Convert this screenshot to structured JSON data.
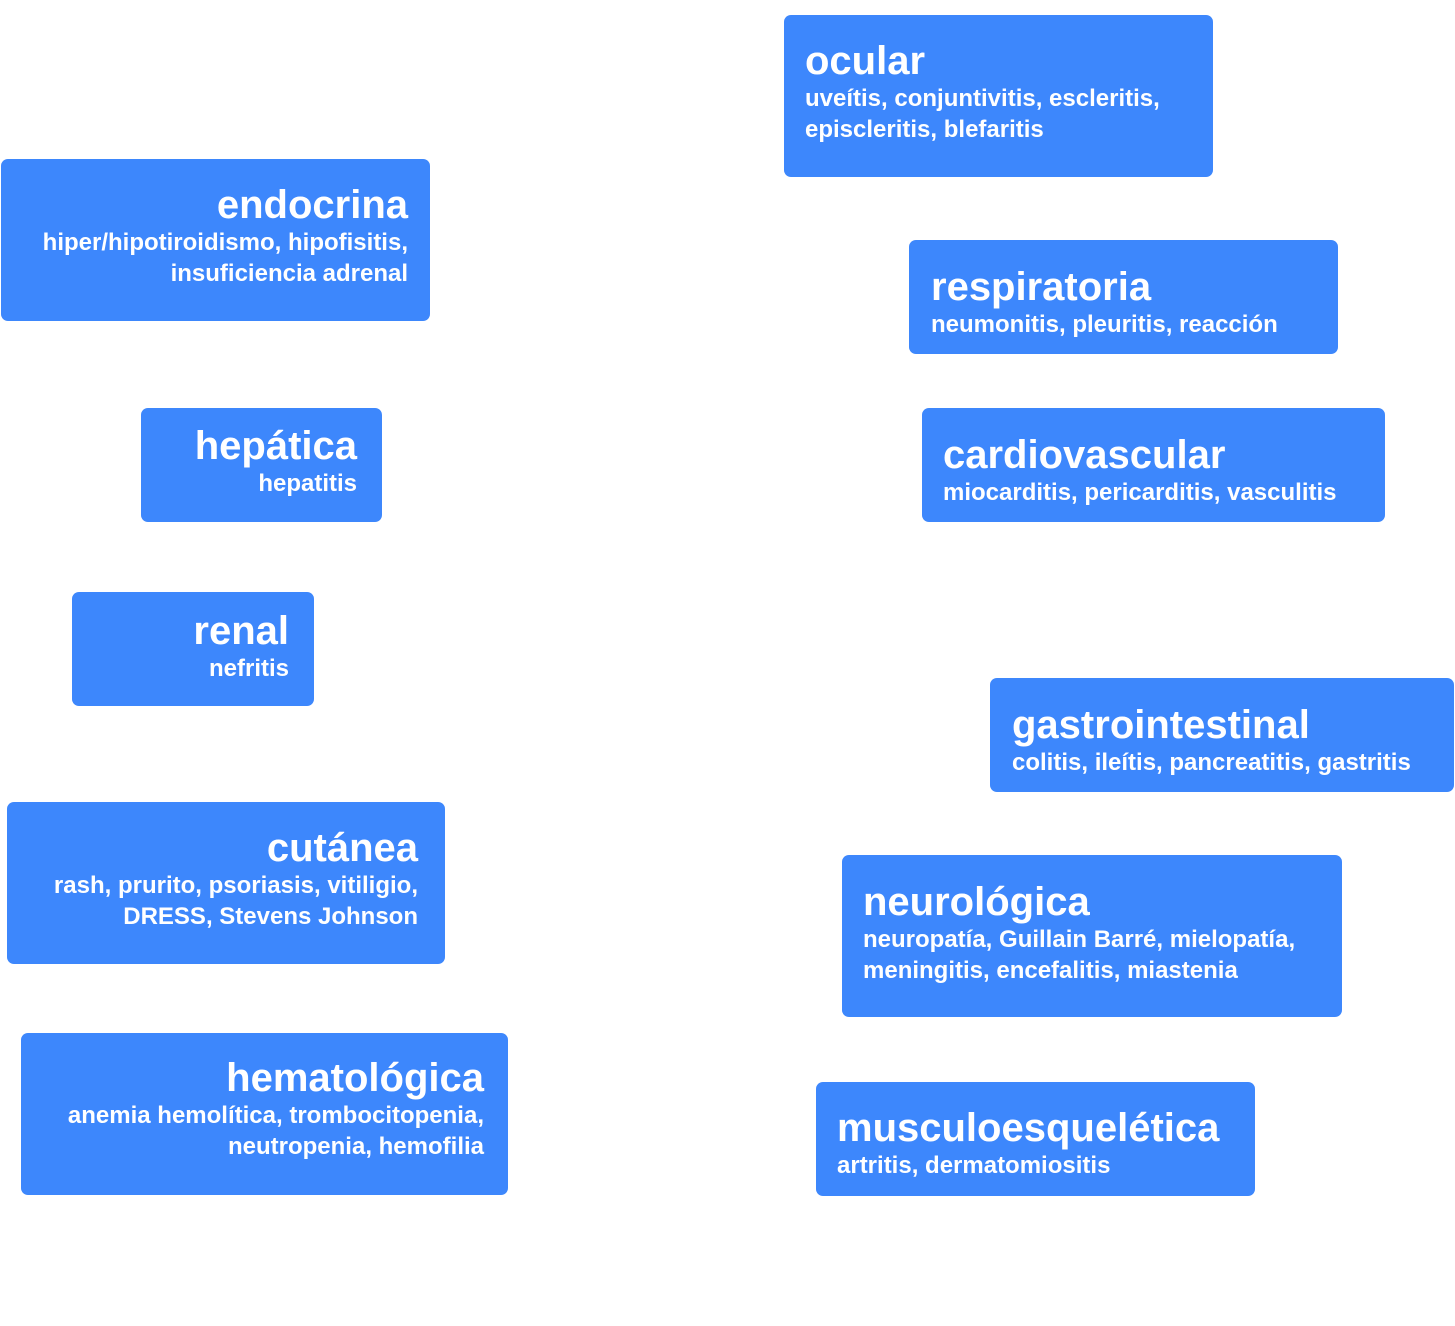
{
  "colors": {
    "background": "#ffffff",
    "box": "#3d87fc",
    "text": "#ffffff"
  },
  "boxes": {
    "endocrina": {
      "title": "endocrina",
      "description": "hiper/hipotiroidismo, hipofisitis,\ninsuficiencia adrenal"
    },
    "hepatica": {
      "title": "hepática",
      "description": "hepatitis"
    },
    "renal": {
      "title": "renal",
      "description": "nefritis"
    },
    "cutanea": {
      "title": "cutánea",
      "description": "rash, prurito, psoriasis, vitiligio,\nDRESS, Stevens Johnson"
    },
    "hematologica": {
      "title": "hematológica",
      "description": "anemia hemolítica, trombocitopenia,\nneutropenia, hemofilia"
    },
    "ocular": {
      "title": "ocular",
      "description": "uveítis, conjuntivitis, escleritis,\nepiscleritis, blefaritis"
    },
    "respiratoria": {
      "title": "respiratoria",
      "description": "neumonitis, pleuritis, reacción"
    },
    "cardiovascular": {
      "title": "cardiovascular",
      "description": "miocarditis, pericarditis, vasculitis"
    },
    "gastrointestinal": {
      "title": "gastrointestinal",
      "description": "colitis, ileítis, pancreatitis, gastritis"
    },
    "neurologica": {
      "title": "neurológica",
      "description": "neuropatía, Guillain Barré, mielopatía,\nmeningitis, encefalitis, miastenia"
    },
    "musculoesqueletica": {
      "title": "musculoesquelética",
      "description": "artritis, dermatomiositis"
    }
  }
}
